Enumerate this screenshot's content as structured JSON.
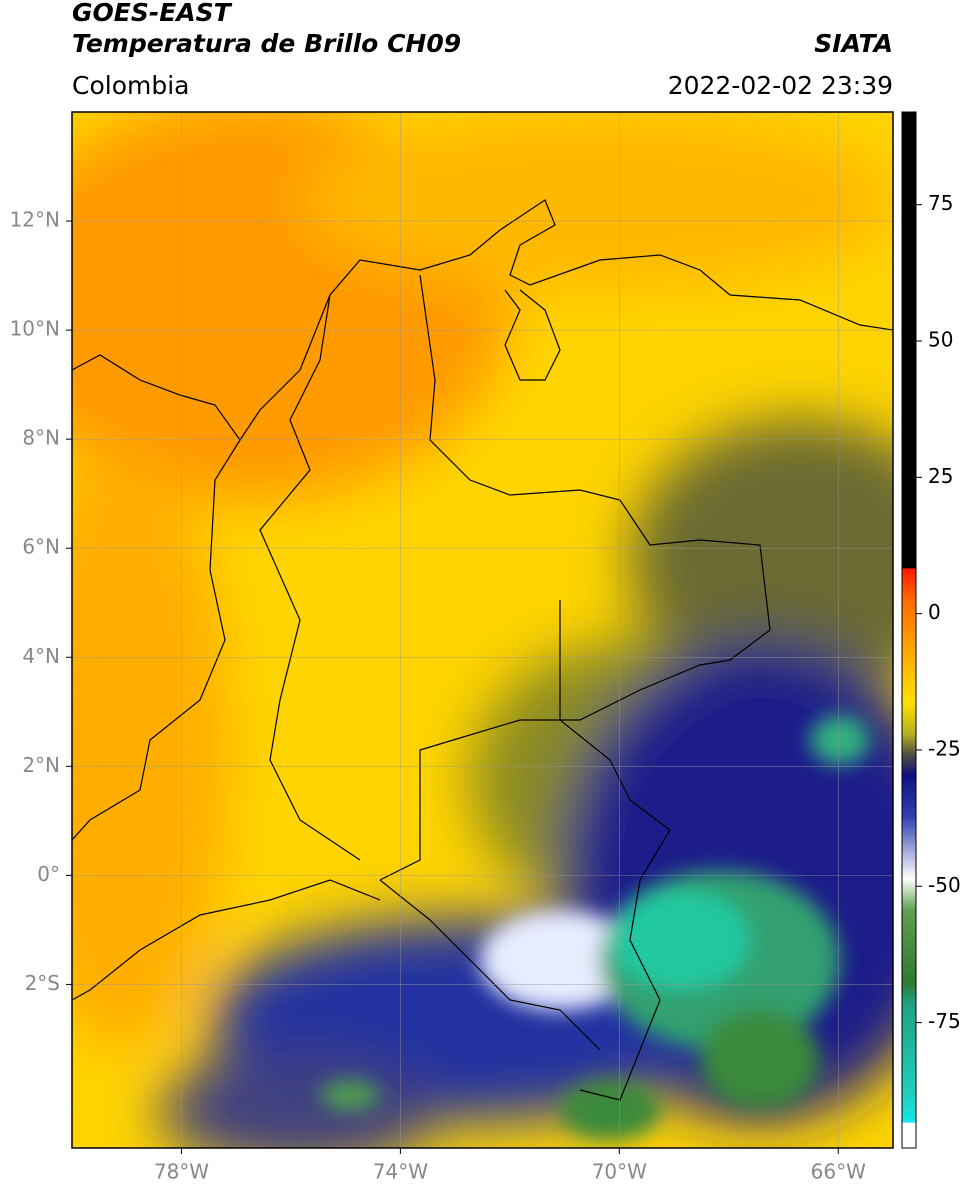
{
  "header": {
    "title": "GOES-EAST",
    "subtitle": "Temperatura de Brillo CH09",
    "source": "SIATA",
    "region": "Colombia",
    "datetime": "2022-02-02 23:39"
  },
  "map": {
    "xlim": [
      -80,
      -65
    ],
    "ylim": [
      -5,
      14
    ],
    "xticks": [
      {
        "value": -78,
        "label": "78°W"
      },
      {
        "value": -74,
        "label": "74°W"
      },
      {
        "value": -70,
        "label": "70°W"
      },
      {
        "value": -66,
        "label": "66°W"
      }
    ],
    "yticks": [
      {
        "value": 12,
        "label": "12°N"
      },
      {
        "value": 10,
        "label": "10°N"
      },
      {
        "value": 8,
        "label": "8°N"
      },
      {
        "value": 6,
        "label": "6°N"
      },
      {
        "value": 4,
        "label": "4°N"
      },
      {
        "value": 2,
        "label": "2°N"
      },
      {
        "value": 0,
        "label": "0°"
      },
      {
        "value": -2,
        "label": "2°S"
      }
    ],
    "grid": true
  },
  "colorbar": {
    "lim": [
      -98,
      92
    ],
    "ticks": [
      75,
      50,
      25,
      0,
      -25,
      -50,
      -75
    ]
  }
}
